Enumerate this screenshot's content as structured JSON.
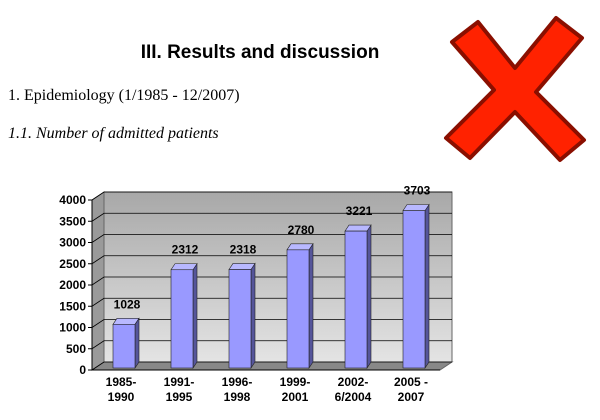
{
  "heading": "III. Results and discussion",
  "section": "1. Epidemiology (1/1985 - 12/2007)",
  "subsection": "1.1. Number of admitted patients",
  "chart_data": {
    "type": "bar",
    "categories": [
      "1985-\n1990",
      "1991-\n1995",
      "1996-\n1998",
      "1999-\n2001",
      "2002-\n6/2004",
      "2005 -\n2007"
    ],
    "values": [
      1028,
      2312,
      2318,
      2780,
      3221,
      3703
    ],
    "color": "#9999ff",
    "ylim": [
      0,
      4000
    ],
    "yticks": [
      0,
      500,
      1000,
      1500,
      2000,
      2500,
      3000,
      3500,
      4000
    ],
    "grid": true
  }
}
